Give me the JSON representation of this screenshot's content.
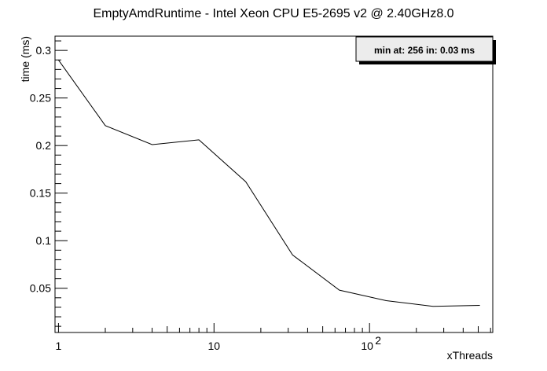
{
  "chart_data": {
    "type": "line",
    "title": "EmptyAmdRuntime - Intel Xeon CPU E5-2695 v2 @ 2.40GHz8.0",
    "xlabel": "xThreads",
    "ylabel": "time (ms)",
    "x_scale": "log",
    "xlim": [
      0.95,
      620
    ],
    "ylim": [
      0.0035,
      0.315
    ],
    "x_ticks": [
      {
        "value": 1,
        "label": "1"
      },
      {
        "value": 10,
        "label": "10"
      },
      {
        "value": 100,
        "label": "10",
        "exponent": "2"
      }
    ],
    "y_ticks": [
      {
        "value": 0.05,
        "label": "0.05"
      },
      {
        "value": 0.1,
        "label": "0.1"
      },
      {
        "value": 0.15,
        "label": "0.15"
      },
      {
        "value": 0.2,
        "label": "0.2"
      },
      {
        "value": 0.25,
        "label": "0.25"
      },
      {
        "value": 0.3,
        "label": "0.3"
      }
    ],
    "grid": false,
    "legend_position": "top-right",
    "legend_text": "min at: 256 in: 0.03 ms",
    "series": [
      {
        "x": [
          1,
          2,
          4,
          8,
          16,
          32,
          64,
          128,
          256,
          512
        ],
        "y": [
          0.29,
          0.221,
          0.201,
          0.206,
          0.162,
          0.085,
          0.048,
          0.037,
          0.031,
          0.032
        ]
      }
    ]
  }
}
